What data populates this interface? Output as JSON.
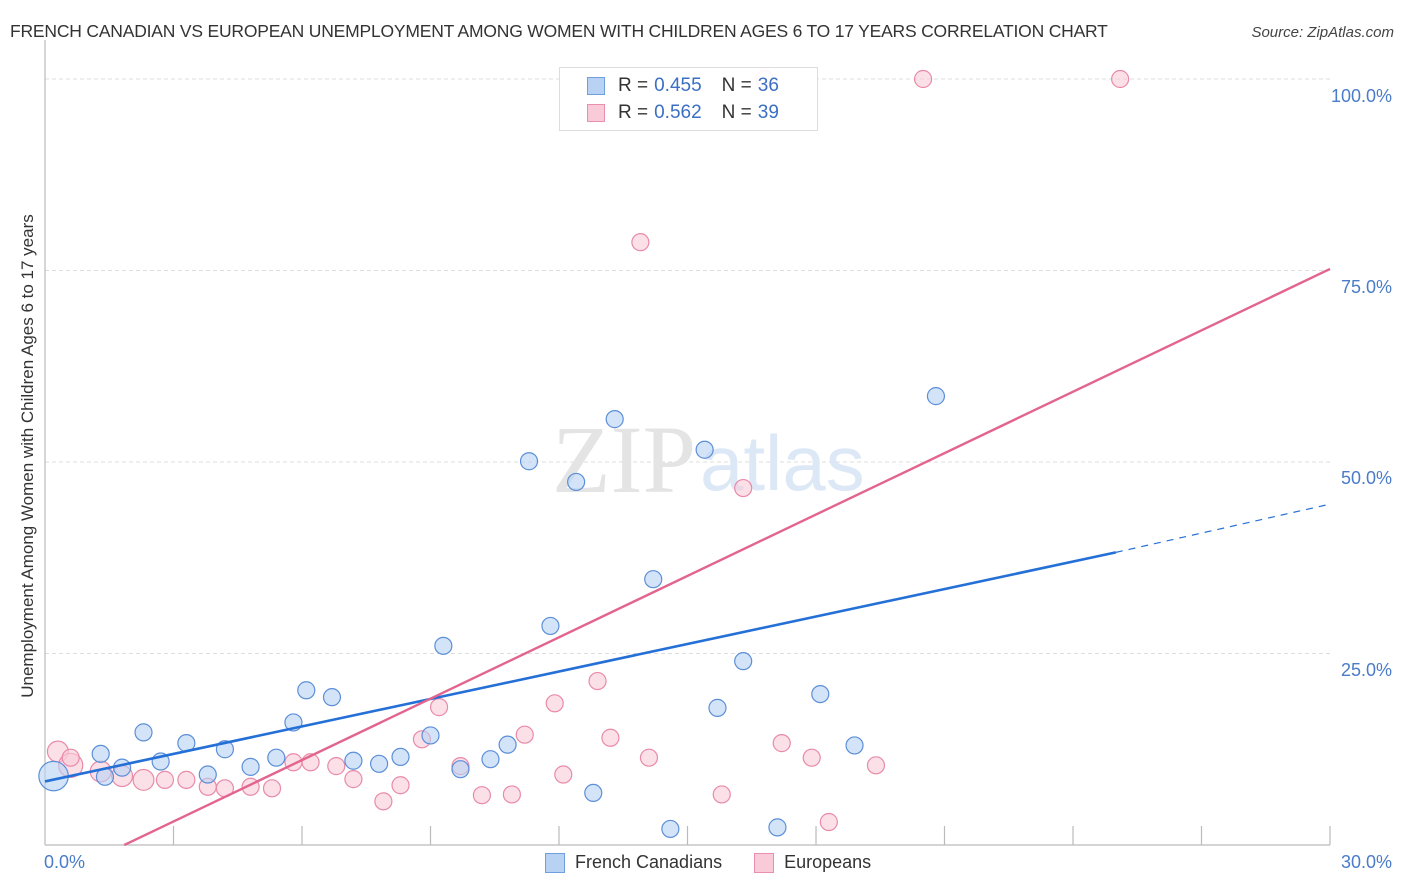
{
  "header": {
    "title": "FRENCH CANADIAN VS EUROPEAN UNEMPLOYMENT AMONG WOMEN WITH CHILDREN AGES 6 TO 17 YEARS CORRELATION CHART",
    "source": "Source: ZipAtlas.com"
  },
  "watermark": {
    "zip": "ZIP",
    "atlas": "atlas"
  },
  "legend": {
    "rows": [
      {
        "r_label": "R =",
        "r_value": "0.455",
        "n_label": "N =",
        "n_value": "36",
        "color": "#a9c8f0",
        "border": "#6f9fe0"
      },
      {
        "r_label": "R =",
        "r_value": "0.562",
        "n_label": "N =",
        "n_value": "39",
        "color": "#f8c5d4",
        "border": "#ec8fae"
      }
    ],
    "bottom": [
      "French Canadians",
      "Europeans"
    ]
  },
  "axes": {
    "y_title": "Unemployment Among Women with Children Ages 6 to 17 years",
    "y_ticks": [
      "100.0%",
      "75.0%",
      "50.0%",
      "25.0%"
    ],
    "x_ticks": [
      "0.0%",
      "30.0%"
    ]
  },
  "colors": {
    "blue_fill": "#b7d2f3",
    "blue_stroke": "#5c8fd8",
    "blue_line": "#2470d6",
    "pink_fill": "#f9cbd9",
    "pink_stroke": "#e98aa9",
    "pink_line": "#e2648f",
    "axis_text": "#4a7cc9",
    "grid": "#dddddd"
  },
  "chart_data": {
    "type": "scatter",
    "title": "FRENCH CANADIAN VS EUROPEAN UNEMPLOYMENT AMONG WOMEN WITH CHILDREN AGES 6 TO 17 YEARS CORRELATION CHART",
    "xlabel": "",
    "ylabel": "Unemployment Among Women with Children Ages 6 to 17 years",
    "xlim": [
      0,
      30
    ],
    "ylim": [
      0,
      100
    ],
    "x_tick_labels": [
      "0.0%",
      "30.0%"
    ],
    "y_tick_labels": [
      "25.0%",
      "50.0%",
      "75.0%",
      "100.0%"
    ],
    "grid": true,
    "legend_position": "top-center and bottom",
    "series": [
      {
        "name": "French Canadians",
        "R": 0.455,
        "N": 36,
        "points": [
          [
            0.2,
            9.0,
            3
          ],
          [
            1.4,
            8.9,
            1
          ],
          [
            1.3,
            11.9,
            1
          ],
          [
            1.8,
            10.1,
            1
          ],
          [
            2.3,
            14.7,
            1
          ],
          [
            2.7,
            10.9,
            1
          ],
          [
            3.3,
            13.3,
            1
          ],
          [
            3.8,
            9.2,
            1
          ],
          [
            4.2,
            12.5,
            1
          ],
          [
            4.8,
            10.2,
            1
          ],
          [
            5.4,
            11.4,
            1
          ],
          [
            5.8,
            16.0,
            1
          ],
          [
            6.1,
            20.2,
            1
          ],
          [
            6.7,
            19.3,
            1
          ],
          [
            7.2,
            11.0,
            1
          ],
          [
            7.8,
            10.6,
            1
          ],
          [
            8.3,
            11.5,
            1
          ],
          [
            9.0,
            14.3,
            1
          ],
          [
            9.3,
            26.0,
            1
          ],
          [
            9.7,
            9.9,
            1
          ],
          [
            10.4,
            11.2,
            1
          ],
          [
            10.8,
            13.1,
            1
          ],
          [
            11.3,
            50.1,
            1
          ],
          [
            11.8,
            28.6,
            1
          ],
          [
            12.4,
            47.4,
            1
          ],
          [
            12.8,
            6.8,
            1
          ],
          [
            13.3,
            55.6,
            1
          ],
          [
            14.2,
            34.7,
            1
          ],
          [
            14.6,
            2.1,
            1
          ],
          [
            15.4,
            51.6,
            1
          ],
          [
            15.7,
            17.9,
            1
          ],
          [
            16.3,
            24.0,
            1
          ],
          [
            17.1,
            2.3,
            1
          ],
          [
            18.1,
            19.7,
            1
          ],
          [
            18.9,
            13.0,
            1
          ],
          [
            20.8,
            58.6,
            1
          ]
        ],
        "trendline": {
          "x0": 0,
          "y0": 8.3,
          "x1": 25.0,
          "y1": 38.2,
          "dashed_to_x": 30.0,
          "dashed_to_y": 44.5
        }
      },
      {
        "name": "Europeans",
        "R": 0.562,
        "N": 39,
        "points": [
          [
            0.3,
            12.2,
            1.5
          ],
          [
            0.6,
            10.4,
            2
          ],
          [
            1.3,
            9.6,
            1.5
          ],
          [
            1.8,
            9.0,
            1.5
          ],
          [
            2.3,
            8.5,
            1.5
          ],
          [
            2.8,
            8.5,
            1
          ],
          [
            3.3,
            8.5,
            1
          ],
          [
            3.8,
            7.6,
            1
          ],
          [
            4.2,
            7.4,
            1
          ],
          [
            4.8,
            7.6,
            1
          ],
          [
            5.3,
            7.4,
            1
          ],
          [
            5.8,
            10.8,
            1
          ],
          [
            6.2,
            10.8,
            1
          ],
          [
            6.8,
            10.3,
            1
          ],
          [
            7.2,
            8.6,
            1
          ],
          [
            7.9,
            5.7,
            1
          ],
          [
            8.3,
            7.8,
            1
          ],
          [
            8.8,
            13.8,
            1
          ],
          [
            9.2,
            18.0,
            1
          ],
          [
            9.7,
            10.3,
            1
          ],
          [
            10.2,
            6.5,
            1
          ],
          [
            10.9,
            6.6,
            1
          ],
          [
            11.2,
            14.4,
            1
          ],
          [
            11.9,
            18.5,
            1
          ],
          [
            12.1,
            9.2,
            1
          ],
          [
            12.9,
            21.4,
            1
          ],
          [
            13.2,
            14.0,
            1
          ],
          [
            14.1,
            11.4,
            1
          ],
          [
            13.9,
            78.7,
            1
          ],
          [
            15.8,
            6.6,
            1
          ],
          [
            16.3,
            46.6,
            1
          ],
          [
            16.8,
            100.0,
            1
          ],
          [
            17.2,
            13.3,
            1
          ],
          [
            17.9,
            11.4,
            1
          ],
          [
            18.3,
            3.0,
            1
          ],
          [
            19.4,
            10.4,
            1
          ],
          [
            20.5,
            100.0,
            1
          ],
          [
            25.1,
            100.0,
            1
          ],
          [
            0.6,
            11.4,
            1
          ]
        ],
        "trendline": {
          "x0": 1.85,
          "y0": 0,
          "x1": 30.0,
          "y1": 75.2
        }
      }
    ]
  }
}
